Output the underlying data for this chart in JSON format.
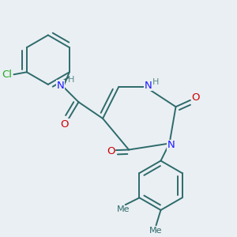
{
  "bg": "#eaeff3",
  "bc": "#2d6b6b",
  "bw": 1.4,
  "colors": {
    "N": "#1a1aff",
    "O": "#cc0000",
    "Cl": "#22aa22",
    "H": "#5a8a8a",
    "C": "#2d6b6b"
  },
  "fs": 9.5
}
